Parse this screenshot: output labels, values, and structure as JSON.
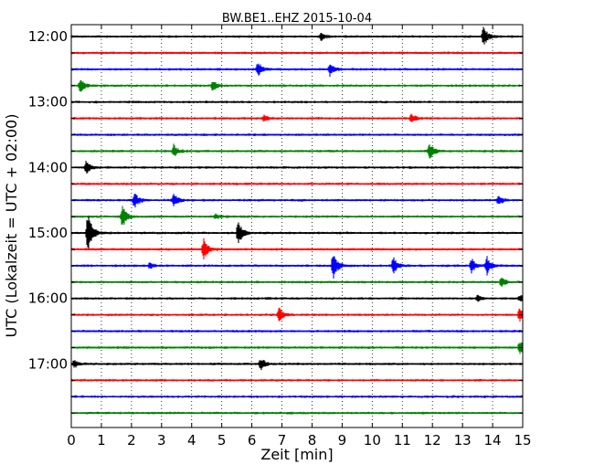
{
  "chart_data": {
    "type": "line",
    "title": "BW.BE1..EHZ 2015-10-04",
    "xlabel": "Zeit  [min]",
    "ylabel": "UTC (Lokalzeit = UTC + 02:00)",
    "xlim": [
      0,
      15
    ],
    "x_ticks": [
      0,
      1,
      2,
      3,
      4,
      5,
      6,
      7,
      8,
      9,
      10,
      11,
      12,
      13,
      14,
      15
    ],
    "y_tick_labels": [
      "12:00",
      "13:00",
      "14:00",
      "15:00",
      "16:00",
      "17:00"
    ],
    "grid": "vertical dotted",
    "trace_colors": [
      "#000000",
      "#ff0000",
      "#0000ff",
      "#008000"
    ],
    "traces": [
      {
        "start": "12:00",
        "events": [
          {
            "t": 8.3,
            "amp": 0.25
          },
          {
            "t": 13.7,
            "amp": 0.65
          }
        ]
      },
      {
        "start": "12:15",
        "events": []
      },
      {
        "start": "12:30",
        "events": [
          {
            "t": 6.2,
            "amp": 0.45
          },
          {
            "t": 8.6,
            "amp": 0.45
          }
        ]
      },
      {
        "start": "12:45",
        "events": [
          {
            "t": 0.3,
            "amp": 0.45
          },
          {
            "t": 4.7,
            "amp": 0.35
          }
        ]
      },
      {
        "start": "13:00",
        "events": []
      },
      {
        "start": "13:15",
        "events": [
          {
            "t": 6.4,
            "amp": 0.2
          },
          {
            "t": 11.3,
            "amp": 0.3
          }
        ]
      },
      {
        "start": "13:30",
        "events": []
      },
      {
        "start": "13:45",
        "events": [
          {
            "t": 3.4,
            "amp": 0.4
          },
          {
            "t": 11.9,
            "amp": 0.55
          }
        ]
      },
      {
        "start": "14:00",
        "events": [
          {
            "t": 0.5,
            "amp": 0.45
          }
        ]
      },
      {
        "start": "14:15",
        "events": []
      },
      {
        "start": "14:30",
        "events": [
          {
            "t": 2.1,
            "amp": 0.55
          },
          {
            "t": 3.4,
            "amp": 0.45
          },
          {
            "t": 14.2,
            "amp": 0.3
          }
        ]
      },
      {
        "start": "14:45",
        "events": [
          {
            "t": 1.7,
            "amp": 0.75
          },
          {
            "t": 4.8,
            "amp": 0.15
          }
        ]
      },
      {
        "start": "15:00",
        "events": [
          {
            "t": 0.55,
            "amp": 1.4
          },
          {
            "t": 5.55,
            "amp": 0.8
          }
        ]
      },
      {
        "start": "15:15",
        "events": [
          {
            "t": 4.4,
            "amp": 0.7
          }
        ]
      },
      {
        "start": "15:30",
        "events": [
          {
            "t": 2.6,
            "amp": 0.2
          },
          {
            "t": 8.7,
            "amp": 1.0
          },
          {
            "t": 10.7,
            "amp": 0.55
          },
          {
            "t": 13.3,
            "amp": 0.45
          },
          {
            "t": 13.8,
            "amp": 0.6
          }
        ]
      },
      {
        "start": "15:45",
        "events": [
          {
            "t": 14.3,
            "amp": 0.35
          }
        ]
      },
      {
        "start": "16:00",
        "events": [
          {
            "t": 13.5,
            "amp": 0.2
          },
          {
            "t": 14.9,
            "amp": 0.2
          }
        ]
      },
      {
        "start": "16:15",
        "events": [
          {
            "t": 6.9,
            "amp": 0.45
          },
          {
            "t": 14.9,
            "amp": 0.45
          }
        ]
      },
      {
        "start": "16:30",
        "events": []
      },
      {
        "start": "16:45",
        "events": [
          {
            "t": 14.9,
            "amp": 0.4
          }
        ]
      },
      {
        "start": "17:00",
        "events": [
          {
            "t": 0.1,
            "amp": 0.25
          },
          {
            "t": 6.3,
            "amp": 0.4
          }
        ]
      },
      {
        "start": "17:15",
        "events": []
      },
      {
        "start": "17:30",
        "events": []
      },
      {
        "start": "17:45",
        "events": []
      }
    ]
  }
}
